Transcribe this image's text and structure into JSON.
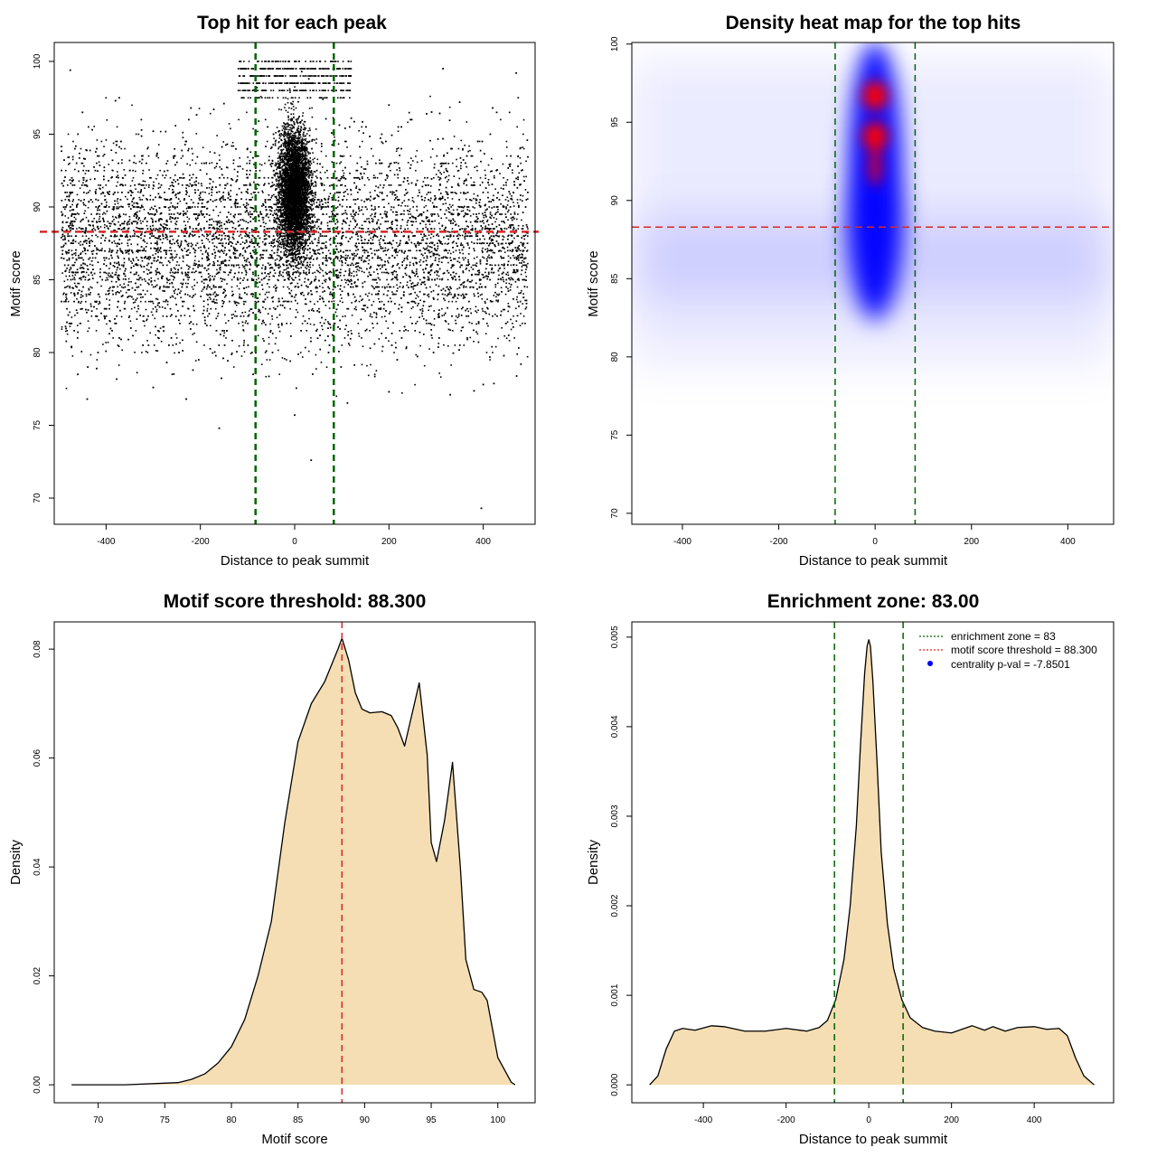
{
  "chart_data": [
    {
      "id": "scatter",
      "type": "scatter",
      "title": "Top hit for each peak",
      "xlabel": "Distance to peak summit",
      "ylabel": "Motif score",
      "xlim": [
        -510,
        510
      ],
      "ylim": [
        68.2,
        101.3
      ],
      "xticks": [
        -400,
        -200,
        0,
        200,
        400
      ],
      "yticks": [
        70,
        75,
        80,
        85,
        90,
        95,
        100
      ],
      "hlines": [
        {
          "y": 88.3,
          "color": "#d62728"
        }
      ],
      "vlines": [
        {
          "x": -83,
          "color": "#006400"
        },
        {
          "x": 83,
          "color": "#006400"
        }
      ],
      "point_color": "#000000",
      "sample_points": [
        [
          -476,
          99.4
        ],
        [
          -450,
          96.5
        ],
        [
          -380,
          97.3
        ],
        [
          -300,
          95.2
        ],
        [
          -220,
          96.8
        ],
        [
          -150,
          97.1
        ],
        [
          -80,
          98.2
        ],
        [
          -20,
          100
        ],
        [
          0,
          100
        ],
        [
          15,
          99.3
        ],
        [
          30,
          98.8
        ],
        [
          60,
          97.4
        ],
        [
          120,
          96.1
        ],
        [
          200,
          97.0
        ],
        [
          280,
          96.4
        ],
        [
          350,
          97.2
        ],
        [
          420,
          96.8
        ],
        [
          470,
          99.2
        ],
        [
          -460,
          78.5
        ],
        [
          -440,
          76.8
        ],
        [
          -420,
          78.9
        ],
        [
          -300,
          77.6
        ],
        [
          -230,
          76.8
        ],
        [
          -160,
          74.8
        ],
        [
          -60,
          80.1
        ],
        [
          0,
          75.7
        ],
        [
          35,
          72.6
        ],
        [
          200,
          77.3
        ],
        [
          330,
          77.1
        ],
        [
          400,
          77.8
        ],
        [
          480,
          79.2
        ],
        [
          396,
          69.3
        ]
      ]
    },
    {
      "id": "heatmap",
      "type": "heatmap",
      "title": "Density heat map for the top hits",
      "xlabel": "Distance to peak summit",
      "ylabel": "Motif score",
      "xlim": [
        -505,
        495
      ],
      "ylim": [
        69.3,
        100.1
      ],
      "xticks": [
        -400,
        -200,
        0,
        200,
        400
      ],
      "yticks": [
        70,
        75,
        80,
        85,
        90,
        95,
        100
      ],
      "hlines": [
        {
          "y": 88.3,
          "color": "#d62728"
        }
      ],
      "vlines": [
        {
          "x": -83,
          "color": "#006400"
        },
        {
          "x": 83,
          "color": "#006400"
        }
      ],
      "colors": [
        "#ffffff",
        "#0000ff",
        "#ff0000"
      ],
      "hotspots": [
        {
          "x": 0,
          "y": 96.7
        },
        {
          "x": 0,
          "y": 94.1
        }
      ]
    },
    {
      "id": "score_density",
      "type": "area",
      "title": "Motif score threshold: 88.300",
      "xlabel": "Motif score",
      "ylabel": "Density",
      "xlim": [
        66.7,
        102.8
      ],
      "ylim": [
        -0.0033,
        0.085
      ],
      "xticks": [
        70,
        75,
        80,
        85,
        90,
        95,
        100
      ],
      "yticks": [
        0.0,
        0.02,
        0.04,
        0.06,
        0.08
      ],
      "ytick_labels": [
        "0.00",
        "0.02",
        "0.04",
        "0.06",
        "0.08"
      ],
      "vlines": [
        {
          "x": 88.3,
          "color": "#d62728"
        }
      ],
      "fill": "#f5deb3",
      "x": [
        68,
        72,
        76,
        77,
        78,
        79,
        80,
        81,
        82,
        83,
        84,
        85,
        86,
        87,
        88,
        88.3,
        88.8,
        89.3,
        89.8,
        90.4,
        91.3,
        92,
        92.5,
        93,
        93.6,
        94.1,
        94.7,
        95,
        95.4,
        96,
        96.6,
        97.2,
        97.6,
        98.2,
        98.8,
        99.2,
        100,
        101,
        101.3
      ],
      "y": [
        0,
        0,
        0.0004,
        0.001,
        0.002,
        0.004,
        0.007,
        0.012,
        0.02,
        0.03,
        0.048,
        0.063,
        0.07,
        0.074,
        0.08,
        0.082,
        0.078,
        0.072,
        0.069,
        0.0683,
        0.0685,
        0.0678,
        0.0655,
        0.0622,
        0.0685,
        0.0738,
        0.0605,
        0.0445,
        0.041,
        0.0485,
        0.0592,
        0.0395,
        0.023,
        0.0175,
        0.017,
        0.0155,
        0.005,
        0.0005,
        0
      ]
    },
    {
      "id": "distance_density",
      "type": "area",
      "title": "Enrichment zone: 83.00",
      "xlabel": "Distance to peak summit",
      "ylabel": "Density",
      "xlim": [
        -573,
        592
      ],
      "ylim": [
        -0.0002,
        0.00517
      ],
      "xticks": [
        -400,
        -200,
        0,
        200,
        400
      ],
      "yticks": [
        0.0,
        0.001,
        0.002,
        0.003,
        0.004,
        0.005
      ],
      "ytick_labels": [
        "0.000",
        "0.001",
        "0.002",
        "0.003",
        "0.004",
        "0.005"
      ],
      "vlines": [
        {
          "x": -83,
          "color": "#006400"
        },
        {
          "x": 83,
          "color": "#006400"
        }
      ],
      "fill": "#f5deb3",
      "legend": {
        "position": "top-right",
        "items": [
          {
            "label": "enrichment zone = 83",
            "color": "#006400",
            "kind": "dotted"
          },
          {
            "label": "motif score threshold = 88.300",
            "color": "#d62728",
            "kind": "dotted"
          },
          {
            "label": "centrality p-val = -7.8501",
            "color": "#0000ff",
            "kind": "point"
          }
        ]
      },
      "x": [
        -530,
        -510,
        -490,
        -470,
        -450,
        -420,
        -380,
        -350,
        -300,
        -250,
        -200,
        -150,
        -120,
        -100,
        -80,
        -60,
        -45,
        -30,
        -20,
        -10,
        -4,
        0,
        4,
        10,
        20,
        30,
        45,
        60,
        80,
        100,
        130,
        160,
        200,
        250,
        280,
        300,
        330,
        360,
        400,
        430,
        460,
        480,
        500,
        520,
        545
      ],
      "y": [
        0,
        0.0001,
        0.0004,
        0.0006,
        0.00063,
        0.00061,
        0.00066,
        0.00065,
        0.0006,
        0.0006,
        0.00063,
        0.0006,
        0.00064,
        0.00072,
        0.00095,
        0.0014,
        0.002,
        0.0029,
        0.0038,
        0.0046,
        0.0049,
        0.00497,
        0.0049,
        0.0045,
        0.0036,
        0.0026,
        0.0018,
        0.0013,
        0.00095,
        0.00075,
        0.00064,
        0.0006,
        0.00058,
        0.00066,
        0.00061,
        0.00065,
        0.0006,
        0.00064,
        0.00065,
        0.00062,
        0.00063,
        0.00055,
        0.0003,
        0.0001,
        0
      ]
    }
  ]
}
